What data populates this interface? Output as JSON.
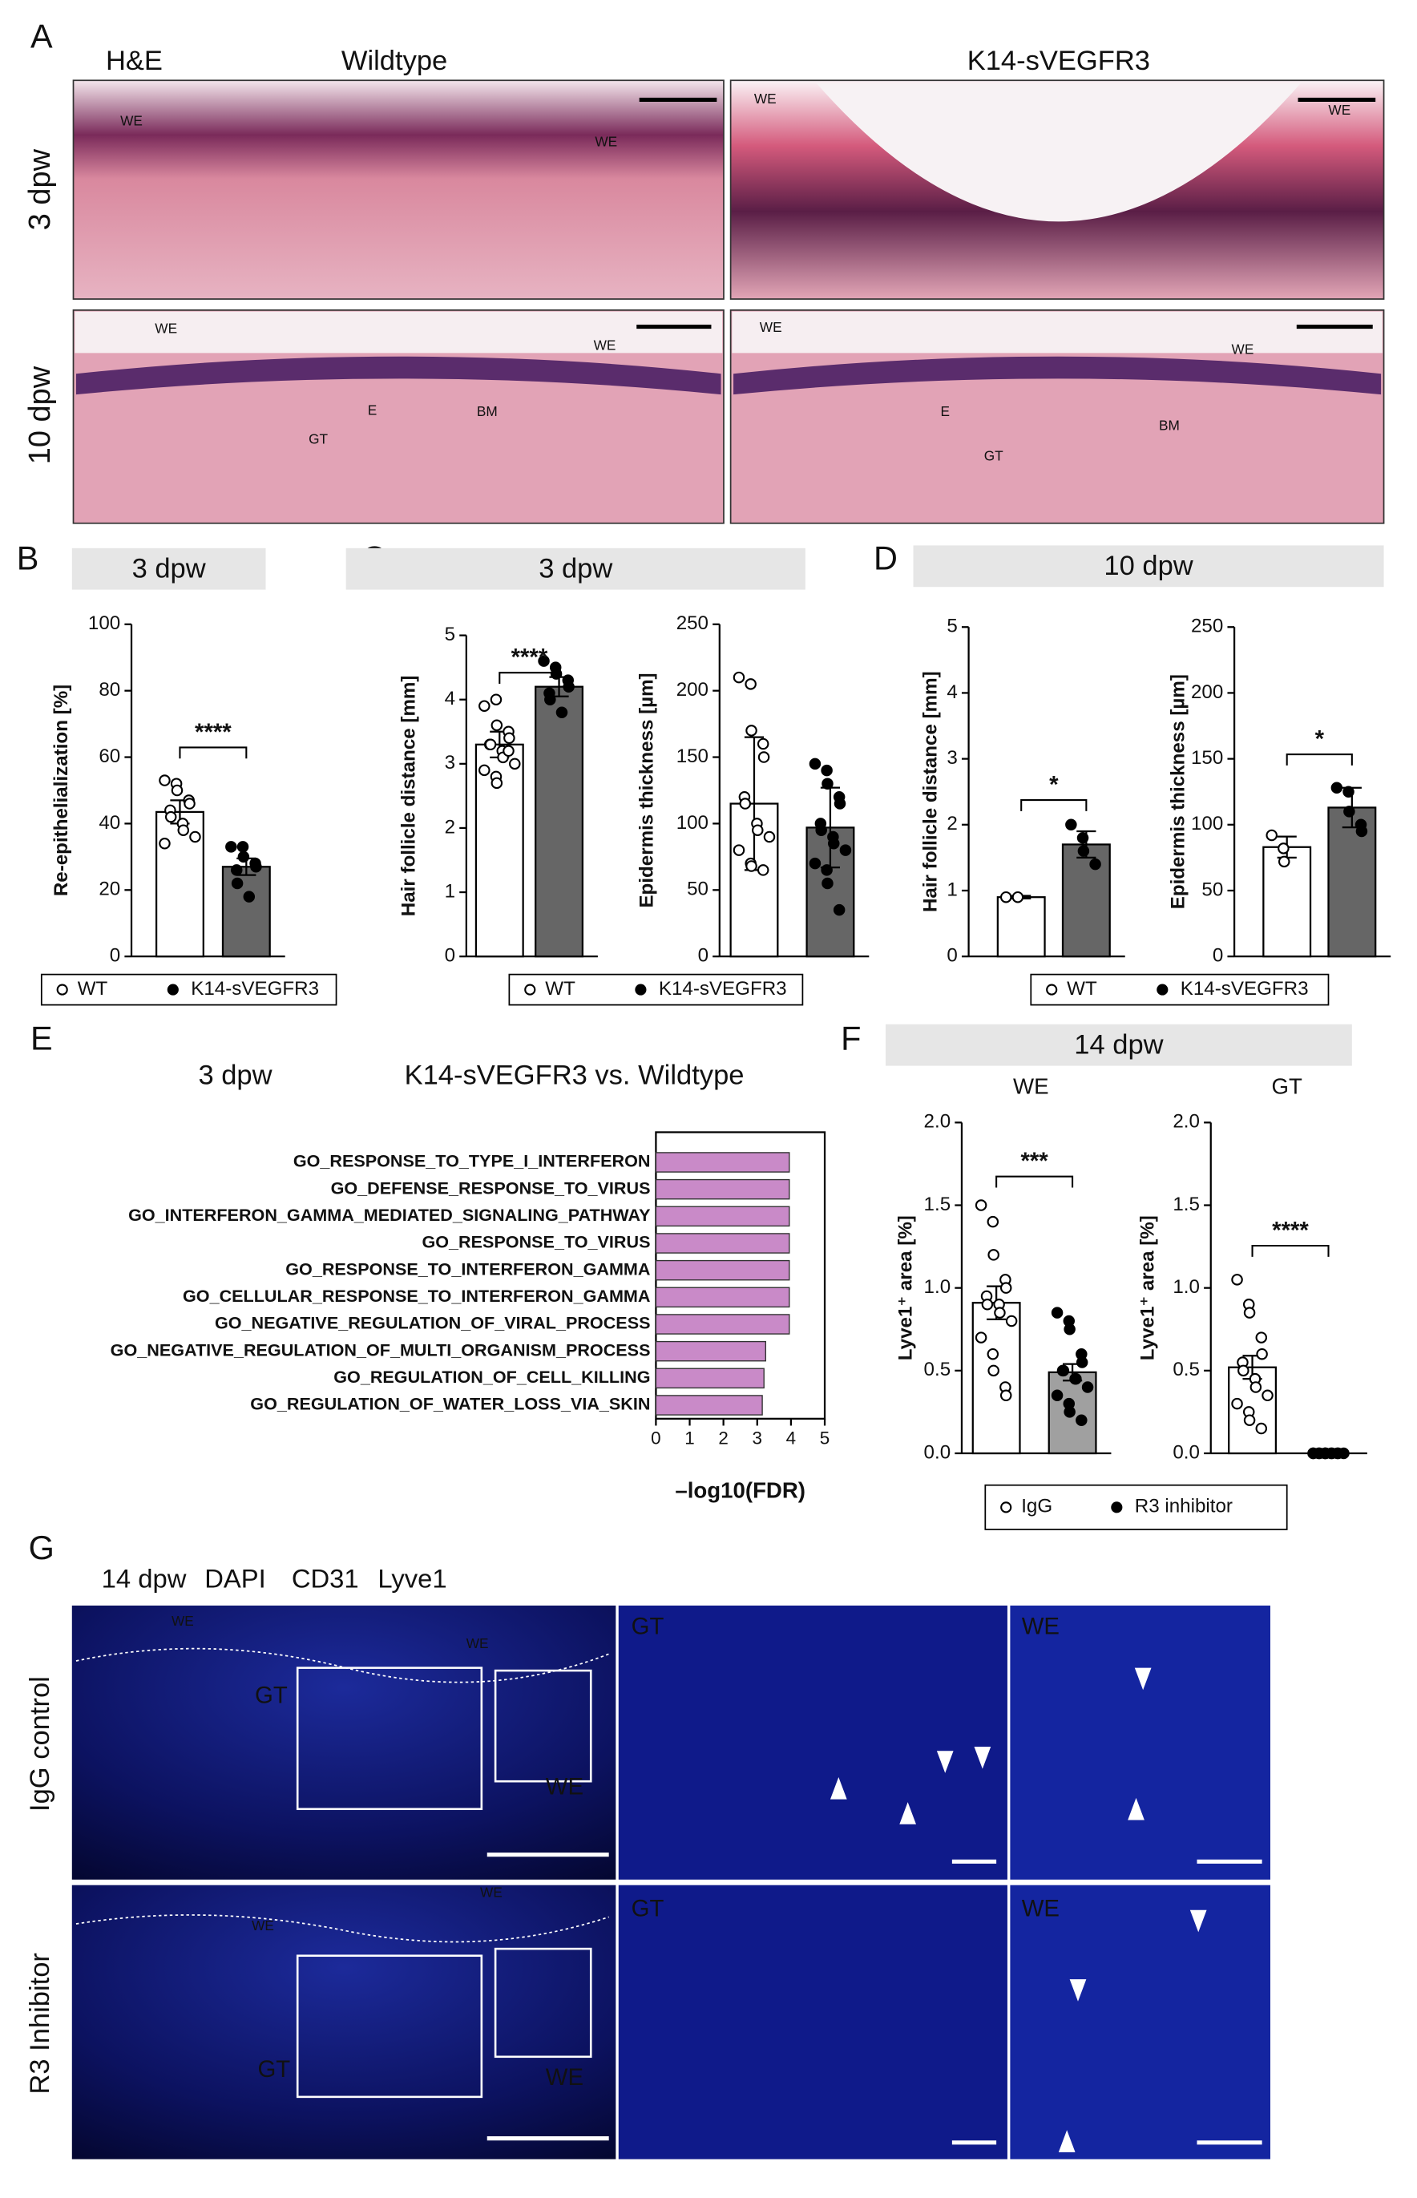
{
  "panel_labels": [
    "A",
    "B",
    "C",
    "D",
    "E",
    "F",
    "G"
  ],
  "panel_a": {
    "stain": "H&E",
    "columns": [
      "Wildtype",
      "K14-sVEGFR3"
    ],
    "rows": [
      "3 dpw",
      "10 dpw"
    ],
    "annotations": [
      "WE",
      "WE",
      "WE",
      "WE",
      "WE",
      "WE",
      "E",
      "BM",
      "GT",
      "WE",
      "WE",
      "E",
      "BM",
      "GT"
    ]
  },
  "headers": {
    "B": "3 dpw",
    "C": "3 dpw",
    "D": "10 dpw",
    "F": "14 dpw"
  },
  "panel_g": {
    "timepoint": "14 dpw",
    "channels": [
      {
        "name": "DAPI",
        "color": "#2b2bd6"
      },
      {
        "name": "CD31",
        "color": "#e0202a"
      },
      {
        "name": "Lyve1",
        "color": "#1fb31f"
      }
    ],
    "rows": [
      "IgG control",
      "R3 Inhibitor"
    ],
    "annotations": [
      "WE",
      "WE",
      "GT",
      "WE",
      "GT",
      "WE",
      "WE",
      "WE",
      "GT",
      "WE",
      "GT",
      "WE"
    ]
  },
  "chart_data": [
    {
      "type": "bar",
      "ylabel": "Re-epithelialization [%]",
      "ylim": [
        0,
        100
      ],
      "yticks": [
        0,
        20,
        40,
        60,
        80,
        100
      ],
      "significance": "****",
      "series": [
        {
          "name": "WT",
          "color": "#ffffff",
          "point_color": "#ffffff",
          "values": [
            43.5
          ],
          "errors": [
            3.5
          ],
          "points": [
            53,
            52,
            50,
            47,
            46,
            44,
            42,
            40,
            38,
            36,
            34
          ]
        },
        {
          "name": "K14-sVEGFR3",
          "color": "#666666",
          "point_color": "#000000",
          "values": [
            27
          ],
          "errors": [
            2.5
          ],
          "points": [
            33,
            33,
            30,
            28,
            27,
            26,
            22,
            18
          ]
        }
      ]
    },
    {
      "type": "bar",
      "ylabel": "Hair follicle distance [mm]",
      "ylim": [
        0,
        5
      ],
      "yticks": [
        0,
        1,
        2,
        3,
        4,
        5
      ],
      "significance": "****",
      "series": [
        {
          "name": "WT",
          "color": "#ffffff",
          "point_color": "#ffffff",
          "values": [
            3.3
          ],
          "errors": [
            0.2
          ],
          "points": [
            3.9,
            4.0,
            3.6,
            3.5,
            3.4,
            3.3,
            3.3,
            3.2,
            3.1,
            3.0,
            2.9,
            2.8,
            2.7,
            3.2
          ]
        },
        {
          "name": "K14-sVEGFR3",
          "color": "#666666",
          "point_color": "#000000",
          "values": [
            4.2
          ],
          "errors": [
            0.15
          ],
          "points": [
            4.6,
            4.5,
            4.4,
            4.3,
            4.2,
            4.1,
            4.0,
            3.8
          ]
        }
      ]
    },
    {
      "type": "bar",
      "ylabel": "Epidermis thickness [µm]",
      "ylim": [
        0,
        250
      ],
      "yticks": [
        0,
        50,
        100,
        150,
        200,
        250
      ],
      "series": [
        {
          "name": "WT",
          "color": "#ffffff",
          "point_color": "#ffffff",
          "values": [
            115
          ],
          "errors": [
            50
          ],
          "points": [
            210,
            205,
            170,
            160,
            150,
            120,
            115,
            100,
            95,
            90,
            80,
            70,
            68,
            65
          ]
        },
        {
          "name": "K14-sVEGFR3",
          "color": "#666666",
          "point_color": "#000000",
          "values": [
            97
          ],
          "errors": [
            30
          ],
          "points": [
            145,
            140,
            130,
            120,
            115,
            100,
            95,
            90,
            85,
            80,
            70,
            65,
            55,
            35
          ]
        }
      ]
    },
    {
      "type": "bar",
      "ylabel": "Hair follicle distance [mm]",
      "ylim": [
        0,
        5
      ],
      "yticks": [
        0,
        1,
        2,
        3,
        4,
        5
      ],
      "significance": "*",
      "series": [
        {
          "name": "WT",
          "color": "#ffffff",
          "point_color": "#ffffff",
          "values": [
            0.9
          ],
          "errors": [
            0.02
          ],
          "points": [
            0.9,
            0.9
          ]
        },
        {
          "name": "K14-sVEGFR3",
          "color": "#666666",
          "point_color": "#000000",
          "values": [
            1.7
          ],
          "errors": [
            0.2
          ],
          "points": [
            2.0,
            1.8,
            1.6,
            1.4
          ]
        }
      ]
    },
    {
      "type": "bar",
      "ylabel": "Epidermis thickness [µm]",
      "ylim": [
        0,
        250
      ],
      "yticks": [
        0,
        50,
        100,
        150,
        200,
        250
      ],
      "significance": "*",
      "series": [
        {
          "name": "WT",
          "color": "#ffffff",
          "point_color": "#ffffff",
          "values": [
            83
          ],
          "errors": [
            8
          ],
          "points": [
            92,
            82,
            72
          ]
        },
        {
          "name": "K14-sVEGFR3",
          "color": "#666666",
          "point_color": "#000000",
          "values": [
            113
          ],
          "errors": [
            15
          ],
          "points": [
            128,
            125,
            110,
            100,
            95
          ]
        }
      ]
    },
    {
      "type": "hbar",
      "subtitle": "3 dpw",
      "title": "K14-sVEGFR3 vs. Wildtype",
      "xlabel": "–log10(FDR)",
      "xlim": [
        0,
        5
      ],
      "xticks": [
        0,
        1,
        2,
        3,
        4,
        5
      ],
      "color": "#c98ac8",
      "categories": [
        "GO_RESPONSE_TO_TYPE_I_INTERFERON",
        "GO_DEFENSE_RESPONSE_TO_VIRUS",
        "GO_INTERFERON_GAMMA_MEDIATED_SIGNALING_PATHWAY",
        "GO_RESPONSE_TO_VIRUS",
        "GO_RESPONSE_TO_INTERFERON_GAMMA",
        "GO_CELLULAR_RESPONSE_TO_INTERFERON_GAMMA",
        "GO_NEGATIVE_REGULATION_OF_VIRAL_PROCESS",
        "GO_NEGATIVE_REGULATION_OF_MULTI_ORGANISM_PROCESS",
        "GO_REGULATION_OF_CELL_KILLING",
        "GO_REGULATION_OF_WATER_LOSS_VIA_SKIN"
      ],
      "values": [
        3.95,
        3.95,
        3.95,
        3.95,
        3.95,
        3.95,
        3.95,
        3.25,
        3.2,
        3.15
      ]
    },
    {
      "type": "bar",
      "title": "WE",
      "ylabel": "Lyve1⁺ area [%]",
      "ylim": [
        0,
        2
      ],
      "yticks": [
        {
          "value": 0,
          "label": "0.0"
        },
        {
          "value": 0.5,
          "label": "0.5"
        },
        {
          "value": 1,
          "label": "1.0"
        },
        {
          "value": 1.5,
          "label": "1.5"
        },
        {
          "value": 2,
          "label": "2.0"
        }
      ],
      "significance": "***",
      "series": [
        {
          "name": "IgG",
          "color": "#ffffff",
          "point_color": "#ffffff",
          "values": [
            0.91
          ],
          "errors": [
            0.1
          ],
          "points": [
            1.5,
            1.4,
            1.2,
            1.05,
            1.0,
            0.95,
            0.9,
            0.9,
            0.85,
            0.8,
            0.7,
            0.6,
            0.5,
            0.4,
            0.35
          ]
        },
        {
          "name": "R3 inhibitor",
          "color": "#a0a0a0",
          "point_color": "#000000",
          "values": [
            0.49
          ],
          "errors": [
            0.05
          ],
          "points": [
            0.85,
            0.8,
            0.75,
            0.6,
            0.55,
            0.5,
            0.5,
            0.45,
            0.45,
            0.4,
            0.35,
            0.3,
            0.25,
            0.2
          ]
        }
      ]
    },
    {
      "type": "bar",
      "title": "GT",
      "ylabel": "Lyve1⁺ area [%]",
      "ylim": [
        0,
        2
      ],
      "yticks": [
        {
          "value": 0,
          "label": "0.0"
        },
        {
          "value": 0.5,
          "label": "0.5"
        },
        {
          "value": 1,
          "label": "1.0"
        },
        {
          "value": 1.5,
          "label": "1.5"
        },
        {
          "value": 2,
          "label": "2.0"
        }
      ],
      "significance": "****",
      "series": [
        {
          "name": "IgG",
          "color": "#ffffff",
          "point_color": "#ffffff",
          "values": [
            0.52
          ],
          "errors": [
            0.07
          ],
          "points": [
            1.05,
            0.9,
            0.85,
            0.7,
            0.6,
            0.55,
            0.5,
            0.45,
            0.4,
            0.35,
            0.3,
            0.25,
            0.2,
            0.15
          ]
        },
        {
          "name": "R3 inhibitor",
          "color": "#a0a0a0",
          "point_color": "#000000",
          "values": [
            0
          ],
          "errors": [
            0
          ],
          "points": [
            0,
            0,
            0,
            0,
            0,
            0,
            0,
            0,
            0,
            0,
            0,
            0
          ]
        }
      ]
    }
  ]
}
